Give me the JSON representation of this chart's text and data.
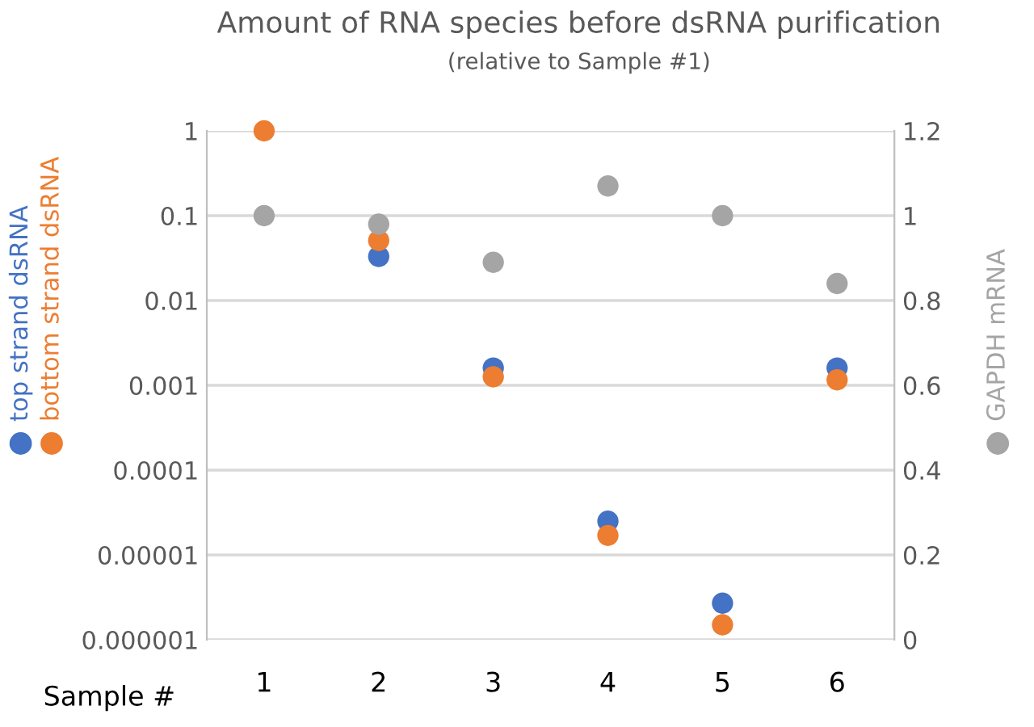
{
  "chart_data": {
    "type": "scatter",
    "title": "Amount of RNA species before dsRNA purification",
    "subtitle": "(relative to Sample #1)",
    "xlabel": "Sample #",
    "categories": [
      "1",
      "2",
      "3",
      "4",
      "5",
      "6"
    ],
    "series": [
      {
        "name": "top strand dsRNA",
        "color": "#4472c4",
        "values": [
          null,
          0.033,
          0.0016,
          2.5e-05,
          2.7e-06,
          0.0016
        ]
      },
      {
        "name": "bottom strand dsRNA",
        "color": "#ed7d31",
        "values": [
          1,
          0.051,
          0.00126,
          1.7e-05,
          1.5e-06,
          0.00116
        ]
      },
      {
        "name": "GAPDH mRNA",
        "color": "#a5a5a5",
        "axis": "y2",
        "values": [
          1.0,
          0.98,
          0.89,
          1.07,
          1.0,
          0.84
        ]
      }
    ],
    "log": "y",
    "ylim": [
      1e-06,
      1
    ],
    "yticks": [
      {
        "value": 1,
        "label": "1"
      },
      {
        "value": 0.1,
        "label": "0.1"
      },
      {
        "value": 0.01,
        "label": "0.01"
      },
      {
        "value": 0.001,
        "label": "0.001"
      },
      {
        "value": 0.0001,
        "label": "0.0001"
      },
      {
        "value": 1e-05,
        "label": "0.00001"
      },
      {
        "value": 1e-06,
        "label": "0.000001"
      }
    ],
    "y2lim": [
      0,
      1.2
    ],
    "y2ticks": [
      0,
      0.2,
      0.4,
      0.6,
      0.8,
      1,
      1.2
    ],
    "grid": "y",
    "marker": "circle",
    "legend": "left"
  }
}
